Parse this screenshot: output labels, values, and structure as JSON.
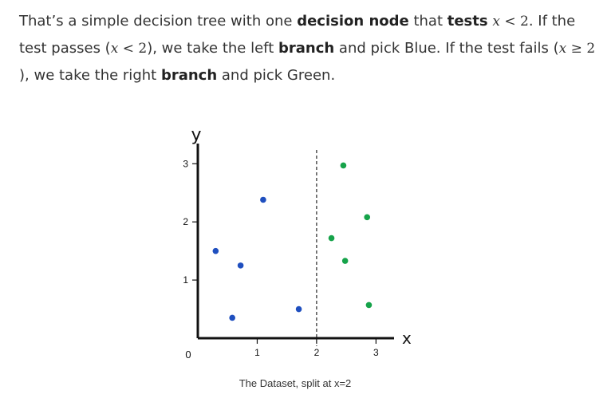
{
  "paragraph": {
    "s1": "That’s a simple decision tree with one ",
    "b1": "decision node",
    "s2": " that ",
    "b2": "tests",
    "s3": ". If the test passes (",
    "s4": "), we take the left ",
    "b3": "branch",
    "s5": " and pick Blue. If the test fails (",
    "s6": "), we take the right ",
    "b4": "branch",
    "s7": " and pick Green.",
    "math_var": "x",
    "math_lt": " < ",
    "math_ge": " ≥ ",
    "math_two": "2"
  },
  "chart_data": {
    "type": "scatter",
    "title": "",
    "caption": "The Dataset, split at x=2",
    "xlabel": "x",
    "ylabel": "y",
    "xlim": [
      0,
      3.25
    ],
    "ylim": [
      0,
      3.1
    ],
    "origin_label": "0",
    "x_ticks": [
      1,
      2,
      3
    ],
    "y_ticks": [
      1,
      2,
      3
    ],
    "split_x": 2,
    "colors": {
      "blue": "#1f4fbf",
      "green": "#16a34a",
      "axis": "#111111",
      "split": "#222222"
    },
    "series": [
      {
        "color": "blue",
        "points": [
          [
            0.3,
            1.5
          ],
          [
            0.58,
            0.35
          ],
          [
            0.72,
            1.25
          ],
          [
            1.1,
            2.38
          ],
          [
            1.7,
            0.5
          ]
        ]
      },
      {
        "color": "green",
        "points": [
          [
            2.25,
            1.72
          ],
          [
            2.45,
            2.97
          ],
          [
            2.48,
            1.33
          ],
          [
            2.85,
            2.08
          ],
          [
            2.88,
            0.57
          ]
        ]
      }
    ]
  }
}
